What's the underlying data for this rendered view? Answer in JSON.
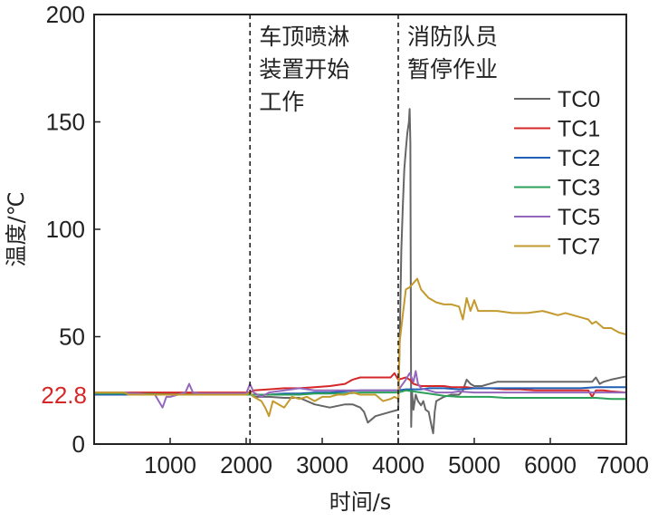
{
  "chart_data": {
    "type": "line",
    "title": "",
    "xlabel": "时间/s",
    "ylabel": "温度/℃",
    "xlim": [
      0,
      7000
    ],
    "ylim": [
      0,
      200
    ],
    "xticks": [
      1000,
      2000,
      3000,
      4000,
      5000,
      6000,
      7000
    ],
    "xtick_labels": [
      "1000",
      "2000",
      "3000",
      "4000",
      "5000",
      "6000",
      "7000"
    ],
    "yticks": [
      0,
      50,
      100,
      150,
      200
    ],
    "ytick_labels": [
      "0",
      "50",
      "100",
      "150",
      "200"
    ],
    "grid": false,
    "legend_position": "right",
    "highlight": {
      "value": 22.8,
      "label": "22.8",
      "color": "#d62728"
    },
    "vlines": [
      {
        "x": 2050,
        "style": "dashed",
        "label": [
          "车顶喷淋",
          "装置开始",
          "工作"
        ]
      },
      {
        "x": 4000,
        "style": "dashed",
        "label": [
          "消防队员",
          "暂停作业"
        ]
      }
    ],
    "series": [
      {
        "name": "TC0",
        "color": "#666666",
        "x": [
          0,
          1000,
          2000,
          2050,
          2100,
          2300,
          2500,
          2700,
          2900,
          3100,
          3300,
          3400,
          3500,
          3550,
          3600,
          3700,
          3800,
          3900,
          4000,
          4020,
          4040,
          4060,
          4080,
          4100,
          4120,
          4140,
          4150,
          4160,
          4170,
          4180,
          4200,
          4230,
          4260,
          4300,
          4330,
          4360,
          4400,
          4440,
          4460,
          4480,
          4500,
          4600,
          4700,
          4800,
          4850,
          4900,
          4950,
          5000,
          5100,
          5200,
          5300,
          5400,
          5500,
          5600,
          5700,
          5800,
          5900,
          6000,
          6200,
          6400,
          6550,
          6600,
          6650,
          6700,
          6800,
          7000
        ],
        "y": [
          23.5,
          23.5,
          23.5,
          23.5,
          22,
          22,
          21.5,
          21.5,
          18.5,
          17,
          18.5,
          18.5,
          17,
          15,
          10,
          13,
          14,
          15,
          16,
          50,
          90,
          110,
          128,
          137,
          145,
          150,
          156,
          140,
          8,
          25,
          16,
          23,
          20,
          18,
          20,
          16,
          15,
          8,
          5,
          15,
          20,
          22,
          23,
          23,
          25,
          30,
          28,
          27,
          27,
          28,
          29,
          29,
          29,
          29,
          29,
          29,
          29,
          29,
          29,
          29,
          29,
          31,
          28,
          29,
          30,
          31.5
        ]
      },
      {
        "name": "TC1",
        "color": "#d62728",
        "x": [
          0,
          500,
          1000,
          1500,
          2000,
          2050,
          2100,
          2300,
          2500,
          2700,
          2900,
          3100,
          3300,
          3400,
          3500,
          3550,
          3600,
          3700,
          3800,
          3900,
          3950,
          4000,
          4100,
          4150,
          4200,
          4300,
          4400,
          4500,
          4600,
          4700,
          4800,
          4900,
          5000,
          5200,
          5400,
          5600,
          5800,
          6000,
          6200,
          6400,
          6500,
          6550,
          6600,
          6700,
          6800,
          7000
        ],
        "y": [
          24,
          24,
          24,
          24,
          24,
          24,
          25,
          25.5,
          26,
          26,
          26.5,
          27,
          28,
          30,
          31,
          31,
          31,
          31,
          31,
          31,
          33,
          30,
          31,
          30,
          28,
          27,
          27,
          27,
          27,
          26.5,
          26.5,
          26.5,
          26,
          26,
          25.5,
          25.5,
          25,
          25,
          25,
          25,
          25,
          22,
          25,
          25,
          24.5,
          24
        ]
      },
      {
        "name": "TC2",
        "color": "#1f5fb4",
        "x": [
          0,
          500,
          1000,
          1500,
          2000,
          2100,
          2300,
          2500,
          2700,
          2900,
          3100,
          3300,
          3500,
          3700,
          3900,
          4000,
          4100,
          4200,
          4300,
          4400,
          4600,
          4800,
          5000,
          5200,
          5400,
          5600,
          5800,
          6000,
          6200,
          6400,
          6600,
          6800,
          7000
        ],
        "y": [
          23,
          23,
          23,
          23,
          23,
          23,
          23,
          23.5,
          23.5,
          24,
          24,
          24.5,
          25,
          25,
          25,
          25,
          25.5,
          25.5,
          25.5,
          26,
          26,
          25.5,
          26,
          26,
          26,
          26,
          26,
          26,
          26,
          26,
          26.5,
          26.5,
          26.5
        ]
      },
      {
        "name": "TC3",
        "color": "#2ca05a",
        "x": [
          0,
          500,
          1000,
          1500,
          2000,
          2100,
          2300,
          2500,
          2700,
          2900,
          3100,
          3300,
          3500,
          3700,
          3900,
          4000,
          4100,
          4200,
          4300,
          4400,
          4500,
          4600,
          4800,
          5000,
          5200,
          5400,
          5600,
          5800,
          6000,
          6200,
          6400,
          6600,
          6800,
          7000
        ],
        "y": [
          23.5,
          23.5,
          23,
          23,
          23,
          23,
          23,
          23,
          23,
          23.5,
          23.5,
          23.5,
          24,
          24,
          24,
          24,
          25,
          24.5,
          24,
          23.5,
          23,
          22.5,
          22,
          22,
          22,
          21.5,
          21.5,
          21.5,
          21.5,
          21.5,
          21.5,
          21.5,
          21,
          21
        ]
      },
      {
        "name": "TC5",
        "color": "#9467bd",
        "x": [
          0,
          400,
          500,
          600,
          700,
          800,
          850,
          900,
          950,
          1000,
          1100,
          1200,
          1250,
          1300,
          1400,
          1500,
          1700,
          2000,
          2050,
          2100,
          2200,
          2300,
          2500,
          2700,
          2900,
          3100,
          3300,
          3500,
          3700,
          3900,
          4000,
          4100,
          4150,
          4200,
          4230,
          4260,
          4300,
          4400,
          4500,
          4600,
          4700,
          4800,
          5000,
          5200,
          5400,
          5600,
          5800,
          6000,
          6200,
          6400,
          6600,
          6800,
          7000
        ],
        "y": [
          24,
          24,
          23.5,
          23.5,
          23,
          23,
          20,
          17,
          22,
          22,
          23,
          24,
          28,
          24,
          23.5,
          23.5,
          23.5,
          23.5,
          28,
          24,
          22,
          24,
          25,
          26,
          25,
          25,
          25,
          25,
          25,
          25,
          25,
          30,
          33,
          29,
          34,
          28,
          26,
          25,
          24,
          24,
          24,
          24.5,
          24,
          24,
          24,
          24,
          24,
          24,
          24,
          24,
          24,
          24,
          24
        ]
      },
      {
        "name": "TC7",
        "color": "#c49a2e",
        "x": [
          0,
          400,
          450,
          500,
          700,
          1000,
          1500,
          2000,
          2050,
          2100,
          2200,
          2250,
          2300,
          2350,
          2400,
          2500,
          2600,
          2700,
          2800,
          2900,
          3000,
          3100,
          3200,
          3300,
          3400,
          3500,
          3600,
          3700,
          3800,
          3900,
          3950,
          4000,
          4020,
          4060,
          4100,
          4150,
          4200,
          4250,
          4300,
          4400,
          4500,
          4600,
          4700,
          4800,
          4850,
          4900,
          4950,
          5000,
          5050,
          5100,
          5300,
          5500,
          5700,
          5900,
          6000,
          6100,
          6200,
          6300,
          6400,
          6500,
          6550,
          6600,
          6700,
          6800,
          6900,
          7000
        ],
        "y": [
          24,
          24,
          23,
          23,
          23,
          23,
          23,
          23,
          24,
          22,
          20,
          17,
          13,
          20,
          19,
          17,
          22,
          21,
          22,
          20,
          22,
          22,
          23,
          23,
          24,
          23,
          23,
          23,
          20,
          21,
          22,
          21,
          48,
          60,
          72,
          73,
          75,
          77,
          72,
          68,
          66,
          65,
          65,
          64,
          58,
          68,
          62,
          67,
          62,
          62,
          62,
          61,
          61,
          62,
          61,
          60,
          61,
          60,
          59,
          58,
          56,
          57,
          54,
          54,
          52,
          51
        ]
      }
    ]
  }
}
